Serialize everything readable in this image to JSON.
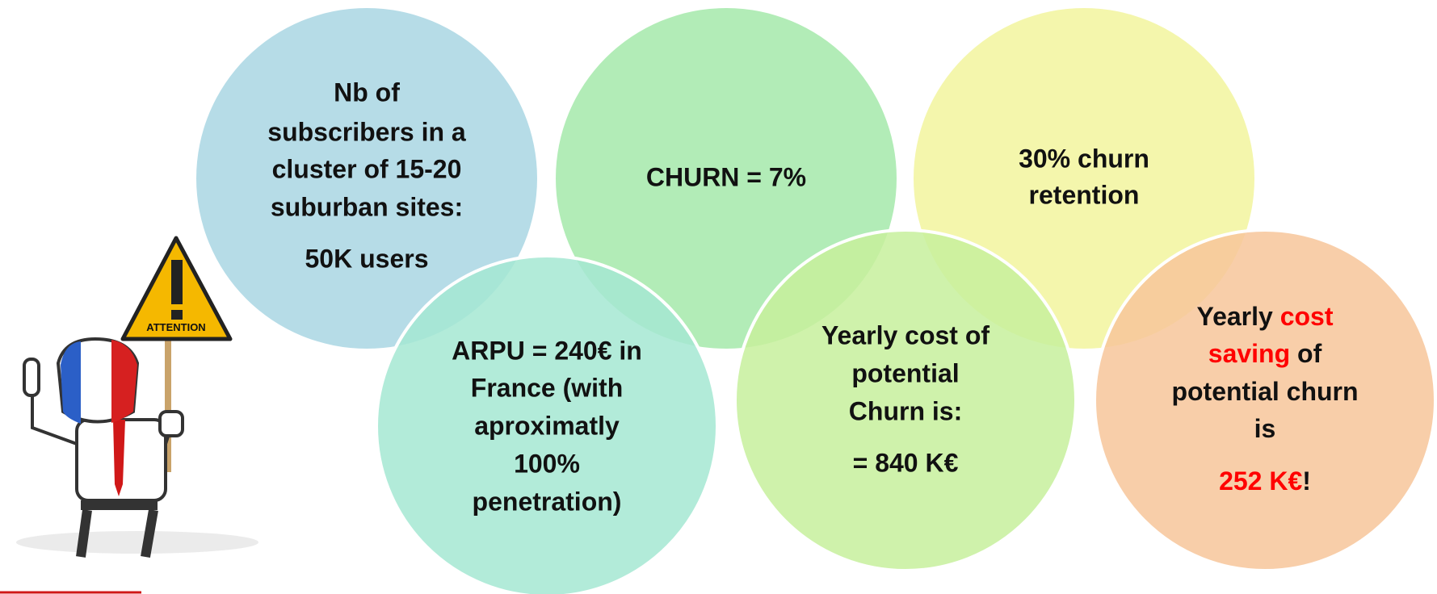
{
  "circles": [
    {
      "lines": [
        "Nb of",
        "subscribers in a",
        "cluster of 15-20",
        "suburban sites:"
      ],
      "result": "50K users"
    },
    {
      "lines": [
        "CHURN = 7%"
      ]
    },
    {
      "lines": [
        "30% churn",
        "retention"
      ]
    },
    {
      "lines": [
        "ARPU = 240€ in",
        "France (with",
        "aproximatly",
        "100%",
        "penetration)"
      ]
    },
    {
      "lines": [
        "Yearly cost of",
        "potential",
        "Churn is:"
      ],
      "result": "= 840 K€"
    },
    {
      "lines": [
        [
          {
            "text": "Yearly "
          },
          {
            "text": "cost",
            "color": "#ff0000"
          }
        ],
        [
          {
            "text": "saving",
            "color": "#ff0000"
          },
          {
            "text": " of"
          }
        ],
        [
          {
            "text": "potential churn"
          }
        ],
        [
          {
            "text": "is"
          }
        ]
      ],
      "result": [
        {
          "text": "252 K€",
          "color": "#ff0000"
        },
        {
          "text": "!"
        }
      ]
    }
  ],
  "sign_text": "ATTENTION"
}
